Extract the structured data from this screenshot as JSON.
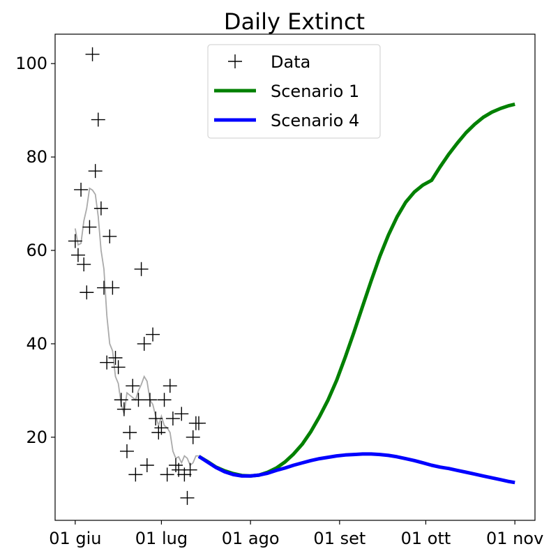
{
  "chart_data": {
    "type": "line",
    "title": "Daily Extinct",
    "xlabel": "",
    "ylabel": "",
    "x_tick_labels": [
      "01 giu",
      "01 lug",
      "01 ago",
      "01 set",
      "01 ott",
      "01 nov"
    ],
    "x_tick_dates": [
      "2020-06-01",
      "2020-07-01",
      "2020-08-01",
      "2020-09-01",
      "2020-10-01",
      "2020-11-01"
    ],
    "xlim": [
      "2020-05-25",
      "2020-11-08"
    ],
    "y_ticks": [
      20,
      40,
      60,
      80,
      100
    ],
    "ylim": [
      2.2,
      106.3
    ],
    "grid": false,
    "legend_position": "top-center",
    "legend": [
      {
        "label": "Data",
        "marker": "plus",
        "color": "#000000"
      },
      {
        "label": "Scenario 1",
        "marker": "line",
        "color": "#008000"
      },
      {
        "label": "Scenario 4",
        "marker": "line",
        "color": "#0000ff"
      }
    ],
    "data_points": {
      "name": "Data",
      "color": "#000000",
      "x": [
        "2020-06-01",
        "2020-06-02",
        "2020-06-03",
        "2020-06-04",
        "2020-06-05",
        "2020-06-06",
        "2020-06-07",
        "2020-06-08",
        "2020-06-09",
        "2020-06-10",
        "2020-06-11",
        "2020-06-12",
        "2020-06-13",
        "2020-06-14",
        "2020-06-15",
        "2020-06-16",
        "2020-06-17",
        "2020-06-18",
        "2020-06-19",
        "2020-06-20",
        "2020-06-21",
        "2020-06-22",
        "2020-06-23",
        "2020-06-24",
        "2020-06-25",
        "2020-06-26",
        "2020-06-27",
        "2020-06-28",
        "2020-06-29",
        "2020-06-30",
        "2020-07-01",
        "2020-07-02",
        "2020-07-03",
        "2020-07-04",
        "2020-07-05",
        "2020-07-06",
        "2020-07-07",
        "2020-07-08",
        "2020-07-09",
        "2020-07-10",
        "2020-07-11",
        "2020-07-12",
        "2020-07-13",
        "2020-07-14"
      ],
      "y": [
        62,
        59,
        73,
        57,
        51,
        65,
        102,
        77,
        88,
        69,
        52,
        36,
        63,
        52,
        37,
        35,
        28,
        26,
        17,
        21,
        31,
        12,
        28,
        56,
        40,
        14,
        28,
        42,
        24,
        21,
        22,
        28,
        12,
        31,
        24,
        14,
        13,
        25,
        12,
        7,
        13,
        20,
        23,
        23
      ]
    },
    "smoothed_line": {
      "color": "#aaaaaa",
      "x": [
        "2020-06-01",
        "2020-06-02",
        "2020-06-03",
        "2020-06-04",
        "2020-06-05",
        "2020-06-06",
        "2020-06-07",
        "2020-06-08",
        "2020-06-09",
        "2020-06-10",
        "2020-06-11",
        "2020-06-12",
        "2020-06-13",
        "2020-06-14",
        "2020-06-15",
        "2020-06-16",
        "2020-06-17",
        "2020-06-18",
        "2020-06-19",
        "2020-06-20",
        "2020-06-21",
        "2020-06-22",
        "2020-06-23",
        "2020-06-24",
        "2020-06-25",
        "2020-06-26",
        "2020-06-27",
        "2020-06-28",
        "2020-06-29",
        "2020-06-30",
        "2020-07-01",
        "2020-07-02",
        "2020-07-03",
        "2020-07-04",
        "2020-07-05",
        "2020-07-06",
        "2020-07-07",
        "2020-07-08",
        "2020-07-09",
        "2020-07-10",
        "2020-07-11",
        "2020-07-12",
        "2020-07-13",
        "2020-07-14"
      ],
      "y": [
        64.7,
        61.2,
        61.5,
        66.3,
        69.0,
        73.3,
        72.9,
        72.0,
        67.3,
        60.0,
        56.0,
        46.0,
        40.0,
        38.5,
        33.0,
        31.5,
        27.0,
        25.0,
        29.5,
        29.0,
        28.5,
        28.0,
        30.0,
        31.3,
        33.0,
        32.0,
        28.0,
        27.0,
        24.5,
        22.5,
        24.5,
        22.5,
        22.0,
        21.0,
        17.0,
        15.5,
        15.8,
        14.5,
        16.0,
        15.5,
        14.0,
        14.5,
        16.0,
        16.0
      ]
    },
    "series": [
      {
        "name": "Scenario 1",
        "color": "#008000",
        "x": [
          "2020-07-14",
          "2020-07-17",
          "2020-07-20",
          "2020-07-23",
          "2020-07-26",
          "2020-07-29",
          "2020-08-01",
          "2020-08-04",
          "2020-08-07",
          "2020-08-10",
          "2020-08-13",
          "2020-08-16",
          "2020-08-19",
          "2020-08-22",
          "2020-08-25",
          "2020-08-28",
          "2020-08-31",
          "2020-09-03",
          "2020-09-06",
          "2020-09-09",
          "2020-09-12",
          "2020-09-15",
          "2020-09-18",
          "2020-09-21",
          "2020-09-24",
          "2020-09-27",
          "2020-09-30",
          "2020-10-03",
          "2020-10-06",
          "2020-10-09",
          "2020-10-12",
          "2020-10-15",
          "2020-10-18",
          "2020-10-21",
          "2020-10-24",
          "2020-10-27",
          "2020-10-30",
          "2020-11-01"
        ],
        "y": [
          15.9,
          14.8,
          13.6,
          12.8,
          12.2,
          11.8,
          11.7,
          11.9,
          12.5,
          13.4,
          14.7,
          16.4,
          18.5,
          21.2,
          24.4,
          28.0,
          32.2,
          37.2,
          42.5,
          48.0,
          53.5,
          58.7,
          63.3,
          67.2,
          70.3,
          72.5,
          74.0,
          75.0,
          77.9,
          80.6,
          83.0,
          85.2,
          87.0,
          88.5,
          89.6,
          90.4,
          91.0,
          91.3
        ]
      },
      {
        "name": "Scenario 4",
        "color": "#0000ff",
        "x": [
          "2020-07-14",
          "2020-07-17",
          "2020-07-20",
          "2020-07-23",
          "2020-07-26",
          "2020-07-29",
          "2020-08-01",
          "2020-08-04",
          "2020-08-07",
          "2020-08-10",
          "2020-08-13",
          "2020-08-16",
          "2020-08-19",
          "2020-08-22",
          "2020-08-25",
          "2020-08-28",
          "2020-08-31",
          "2020-09-03",
          "2020-09-06",
          "2020-09-09",
          "2020-09-12",
          "2020-09-15",
          "2020-09-18",
          "2020-09-21",
          "2020-09-24",
          "2020-09-27",
          "2020-09-30",
          "2020-10-03",
          "2020-10-06",
          "2020-10-09",
          "2020-10-12",
          "2020-10-15",
          "2020-10-18",
          "2020-10-21",
          "2020-10-24",
          "2020-10-27",
          "2020-10-30",
          "2020-11-01"
        ],
        "y": [
          15.9,
          14.7,
          13.5,
          12.6,
          12.0,
          11.7,
          11.7,
          11.9,
          12.3,
          12.9,
          13.4,
          14.0,
          14.5,
          15.0,
          15.4,
          15.7,
          16.0,
          16.2,
          16.3,
          16.4,
          16.4,
          16.3,
          16.1,
          15.8,
          15.4,
          15.0,
          14.5,
          14.0,
          13.6,
          13.3,
          12.9,
          12.5,
          12.1,
          11.7,
          11.3,
          10.9,
          10.5,
          10.3
        ]
      }
    ]
  }
}
